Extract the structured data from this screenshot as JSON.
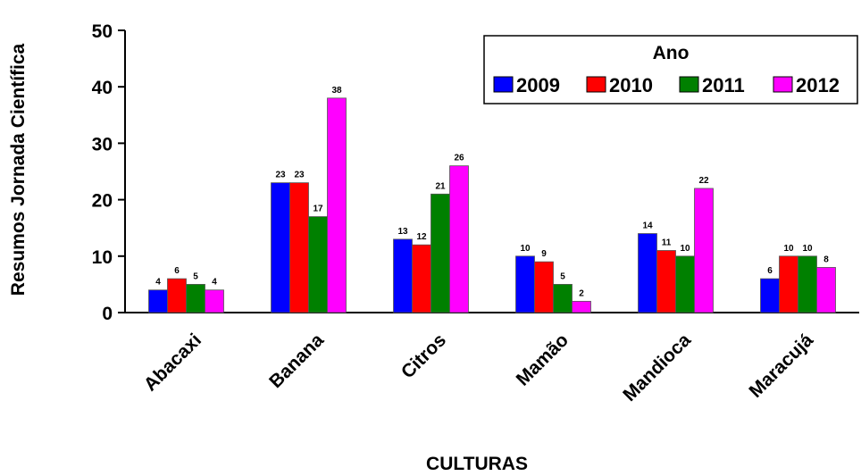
{
  "chart_data": {
    "type": "bar",
    "xlabel": "CULTURAS",
    "ylabel": "Resumos Jornada Científica",
    "ylim": [
      0,
      50
    ],
    "yticks": [
      "0",
      "10",
      "20",
      "30",
      "40",
      "50"
    ],
    "grid": false,
    "legend": {
      "title": "Ano",
      "placement": "top-right"
    },
    "categories": [
      "Abacaxi",
      "Banana",
      "Citros",
      "Mamão",
      "Mandioca",
      "Maracujá"
    ],
    "series": [
      {
        "name": "2009",
        "color": "#0000ff",
        "values": [
          4,
          23,
          13,
          10,
          14,
          6
        ]
      },
      {
        "name": "2010",
        "color": "#ff0000",
        "values": [
          6,
          23,
          12,
          9,
          11,
          10
        ]
      },
      {
        "name": "2011",
        "color": "#008000",
        "values": [
          5,
          17,
          21,
          5,
          10,
          10
        ]
      },
      {
        "name": "2012",
        "color": "#ff00ff",
        "values": [
          4,
          38,
          26,
          2,
          22,
          8
        ]
      }
    ]
  }
}
